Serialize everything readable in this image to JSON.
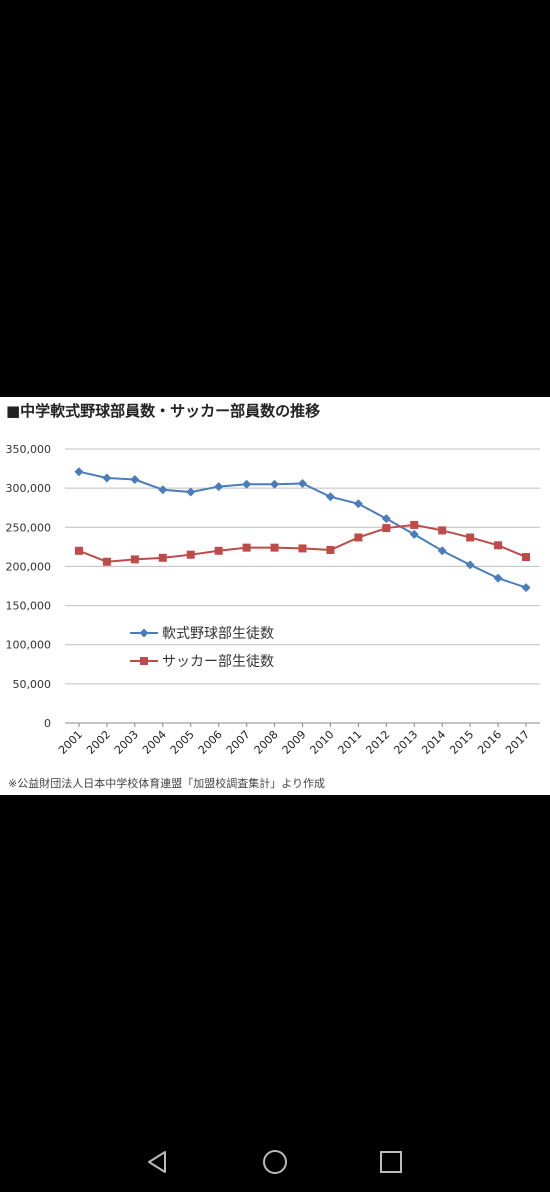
{
  "chart_data": {
    "type": "line",
    "title": "■中学軟式野球部員数・サッカー部員数の推移",
    "x": [
      "2001",
      "2002",
      "2003",
      "2004",
      "2005",
      "2006",
      "2007",
      "2008",
      "2009",
      "2010",
      "2011",
      "2012",
      "2013",
      "2014",
      "2015",
      "2016",
      "2017"
    ],
    "ylim": [
      0,
      350000
    ],
    "yticks": [
      "0",
      "50,000",
      "100,000",
      "150,000",
      "200,000",
      "250,000",
      "300,000",
      "350,000"
    ],
    "grid": true,
    "legend_position": "left-middle",
    "series": [
      {
        "name": "軟式野球部生徒数",
        "color": "#4a7ebb",
        "marker": "diamond",
        "values": [
          321000,
          313000,
          311000,
          298000,
          295000,
          302000,
          305000,
          305000,
          306000,
          289000,
          280000,
          261000,
          241000,
          220000,
          202000,
          185000,
          173000
        ]
      },
      {
        "name": "サッカー部生徒数",
        "color": "#be4b48",
        "marker": "square",
        "values": [
          220000,
          206000,
          209000,
          211000,
          215000,
          220000,
          224000,
          224000,
          223000,
          221000,
          237000,
          249000,
          253000,
          246000,
          237000,
          227000,
          212000
        ]
      }
    ],
    "footnote": "※公益財団法人日本中学校体育連盟「加盟校調査集計」より作成"
  },
  "navigation": {
    "back_icon": "triangle-back-icon",
    "home_icon": "circle-home-icon",
    "recents_icon": "square-recents-icon"
  }
}
